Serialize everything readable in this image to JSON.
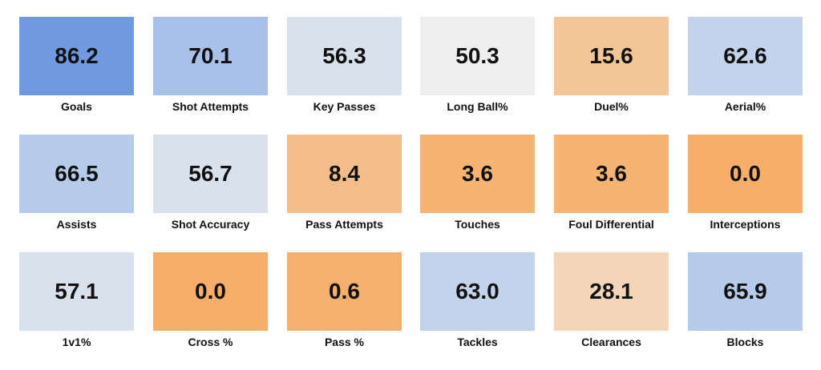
{
  "chart_data": {
    "type": "heatmap",
    "title": "",
    "rows": 3,
    "columns": 6,
    "cells": [
      {
        "label": "Goals",
        "value": "86.2",
        "color": "#6f9ae0"
      },
      {
        "label": "Shot Attempts",
        "value": "70.1",
        "color": "#a9c1e8"
      },
      {
        "label": "Key Passes",
        "value": "56.3",
        "color": "#d9e1ec"
      },
      {
        "label": "Long Ball%",
        "value": "50.3",
        "color": "#eeeeee"
      },
      {
        "label": "Duel%",
        "value": "15.6",
        "color": "#f4c597"
      },
      {
        "label": "Aerial%",
        "value": "62.6",
        "color": "#c3d3ec"
      },
      {
        "label": "Assists",
        "value": "66.5",
        "color": "#b6cbeb"
      },
      {
        "label": "Shot Accuracy",
        "value": "56.7",
        "color": "#d9e1ec"
      },
      {
        "label": "Pass Attempts",
        "value": "8.4",
        "color": "#f3bd8a"
      },
      {
        "label": "Touches",
        "value": "3.6",
        "color": "#f5b473"
      },
      {
        "label": "Foul Differential",
        "value": "3.6",
        "color": "#f5b473"
      },
      {
        "label": "Interceptions",
        "value": "0.0",
        "color": "#f7ae68"
      },
      {
        "label": "1v1%",
        "value": "57.1",
        "color": "#d9e1ec"
      },
      {
        "label": "Cross %",
        "value": "0.0",
        "color": "#f7ae68"
      },
      {
        "label": "Pass %",
        "value": "0.6",
        "color": "#f6b06c"
      },
      {
        "label": "Tackles",
        "value": "63.0",
        "color": "#c3d3ec"
      },
      {
        "label": "Clearances",
        "value": "28.1",
        "color": "#f4d5b7"
      },
      {
        "label": "Blocks",
        "value": "65.9",
        "color": "#b6cbeb"
      }
    ]
  }
}
